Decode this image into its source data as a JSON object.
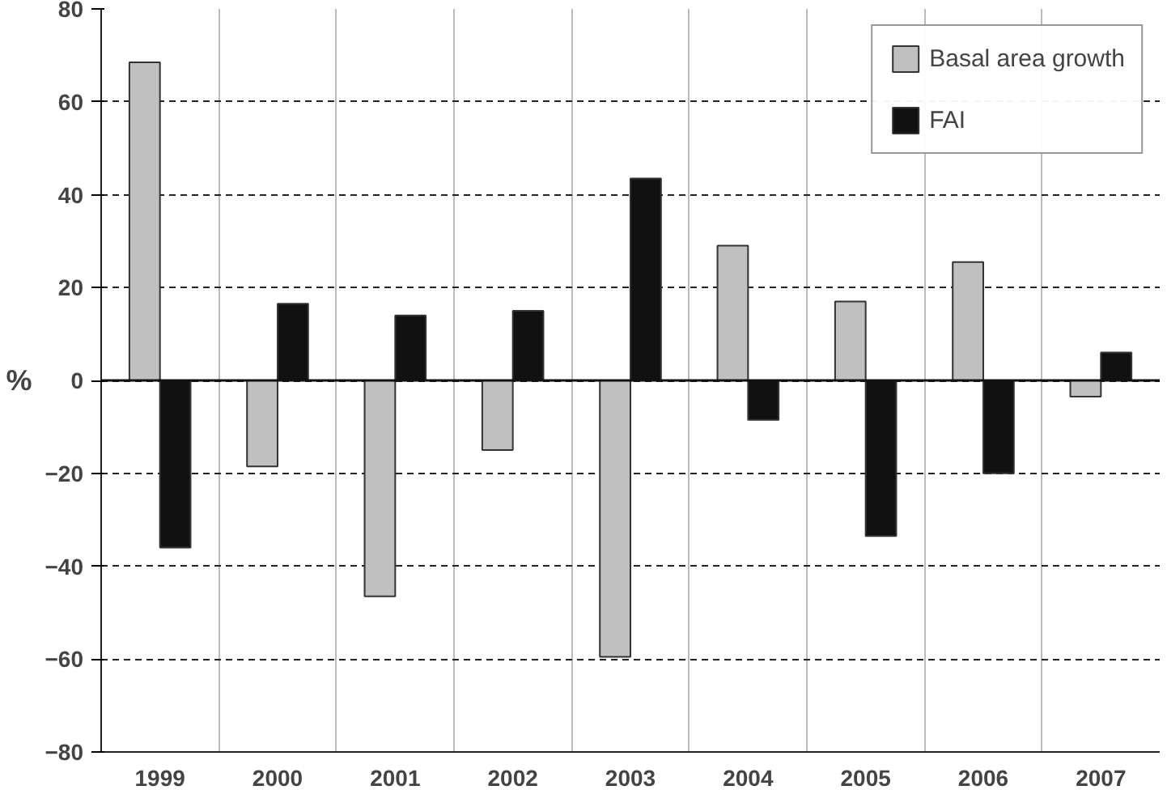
{
  "chart_data": {
    "type": "bar",
    "ylabel": "%",
    "categories": [
      "1999",
      "2000",
      "2001",
      "2002",
      "2003",
      "2004",
      "2005",
      "2006",
      "2007"
    ],
    "series": [
      {
        "name": "Basal area growth",
        "color": "#c0c0c0",
        "values": [
          68.5,
          -18.5,
          -46.5,
          -15,
          -59.5,
          29,
          17,
          25.5,
          -3.5
        ]
      },
      {
        "name": "FAI",
        "color": "#111111",
        "values": [
          -36,
          16.5,
          14,
          15,
          43.5,
          -8.5,
          -33.5,
          -20,
          6
        ]
      }
    ],
    "ylim": [
      -80,
      80
    ],
    "yticks": [
      -80,
      -60,
      -40,
      -20,
      0,
      20,
      40,
      60,
      80
    ],
    "grid": true,
    "legend": "top right"
  }
}
